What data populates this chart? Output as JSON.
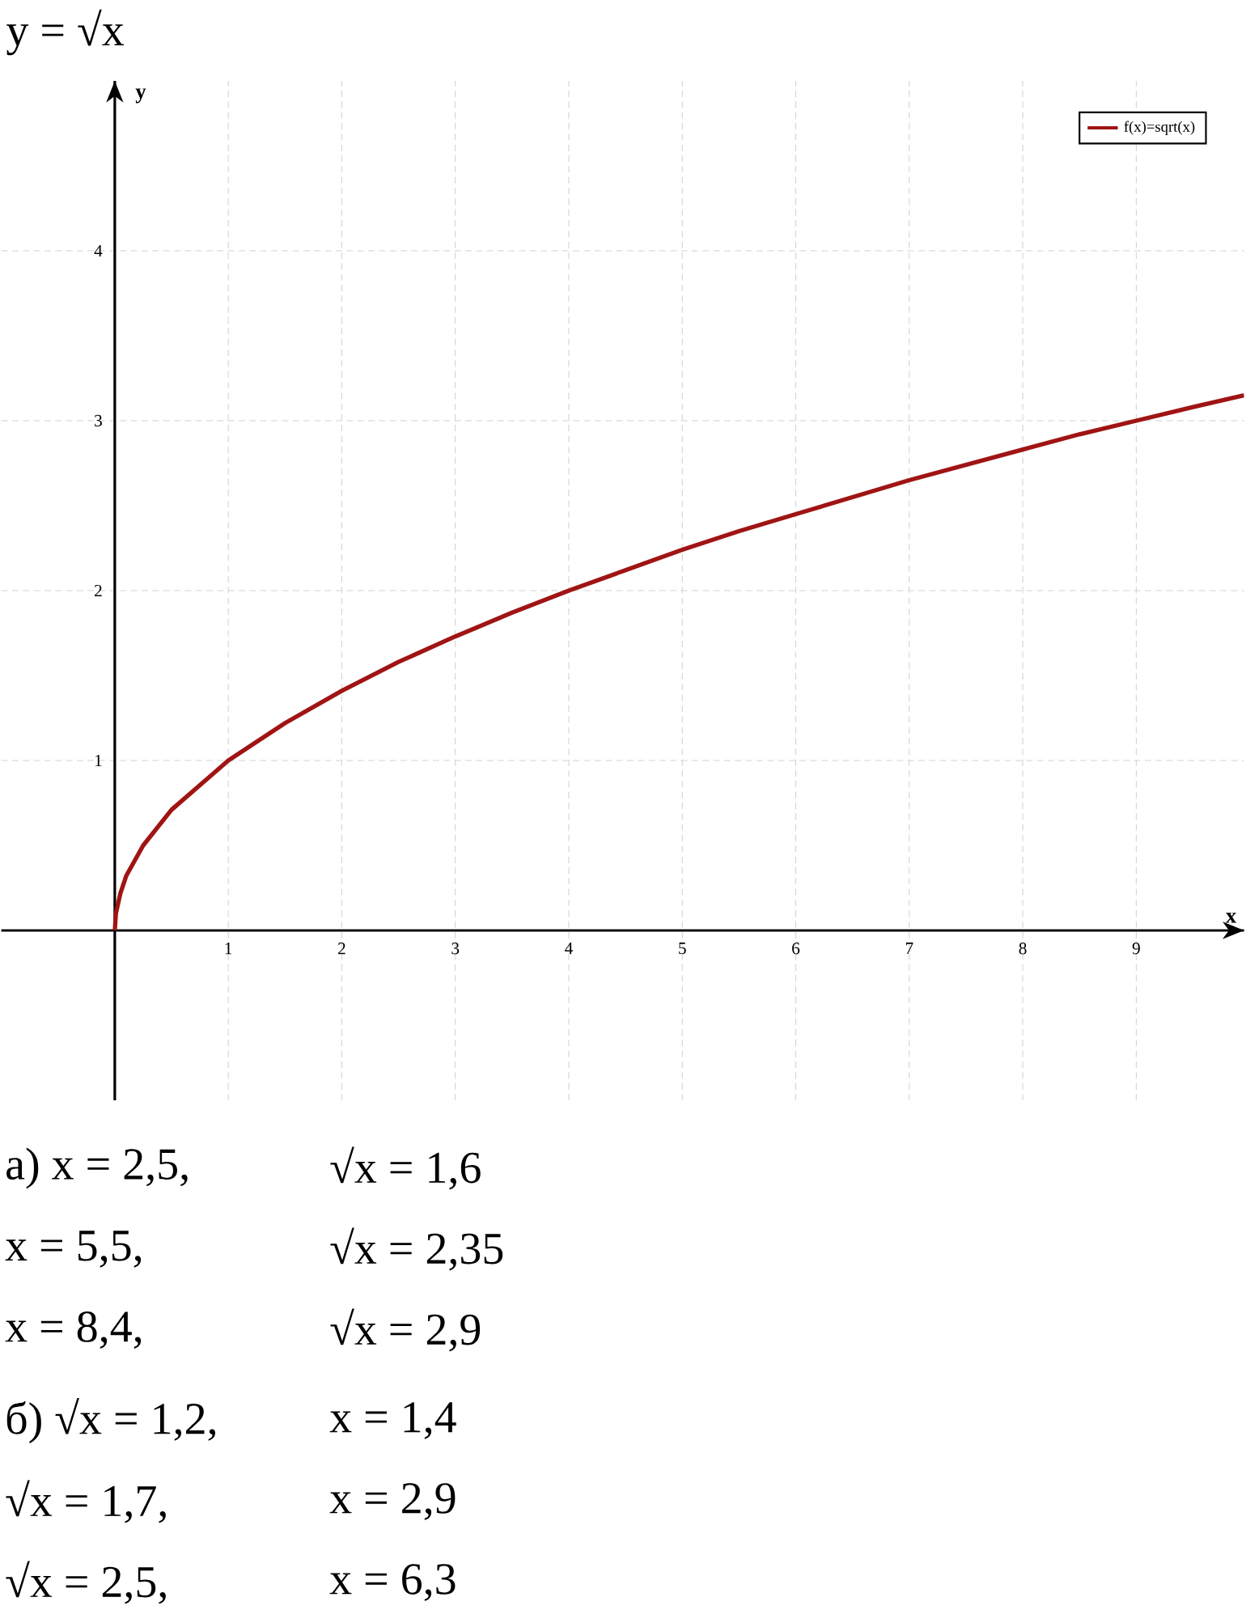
{
  "chart_data": {
    "type": "line",
    "title": "y = √x",
    "xlabel": "x",
    "ylabel": "y",
    "x": [
      0,
      0.01,
      0.05,
      0.1,
      0.25,
      0.5,
      1,
      1.5,
      2,
      2.5,
      3,
      3.5,
      4,
      4.5,
      5,
      5.5,
      6,
      6.5,
      7,
      7.5,
      8,
      8.5,
      9,
      9.5,
      9.95
    ],
    "series": [
      {
        "name": "f(x)=sqrt(x)",
        "color": "#a01414",
        "values": [
          0,
          0.1,
          0.22,
          0.32,
          0.5,
          0.71,
          1,
          1.22,
          1.41,
          1.58,
          1.73,
          1.87,
          2,
          2.12,
          2.24,
          2.35,
          2.45,
          2.55,
          2.65,
          2.74,
          2.83,
          2.92,
          3,
          3.08,
          3.15
        ]
      }
    ],
    "xlim": [
      -1,
      9.95
    ],
    "ylim": [
      -1,
      5
    ],
    "xticks": [
      1,
      2,
      3,
      4,
      5,
      6,
      7,
      8,
      9
    ],
    "yticks": [
      1,
      2,
      3,
      4
    ],
    "grid": true,
    "legend": "top right",
    "annotations": [
      "а) x = 2,5,",
      "√x = 1,6",
      "x = 5,5,",
      "√x = 2,35",
      "x = 8,4,",
      "√x = 2,9",
      "б) √x = 1,2,",
      "x = 1,4",
      "√x = 1,7,",
      "x = 2,9",
      "√x = 2,5,",
      "x = 6,3"
    ]
  }
}
